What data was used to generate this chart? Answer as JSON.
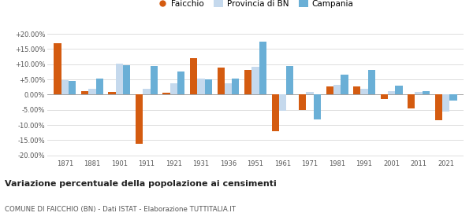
{
  "years": [
    1871,
    1881,
    1901,
    1911,
    1921,
    1931,
    1936,
    1951,
    1961,
    1971,
    1981,
    1991,
    2001,
    2011,
    2021
  ],
  "faicchio": [
    16.8,
    1.2,
    1.0,
    -16.2,
    0.5,
    12.0,
    8.8,
    8.2,
    -12.0,
    -5.0,
    2.8,
    2.8,
    -1.5,
    -4.5,
    -8.5
  ],
  "provincia_bn": [
    4.8,
    1.8,
    10.2,
    1.8,
    3.8,
    5.2,
    3.8,
    9.2,
    -5.3,
    1.0,
    3.2,
    2.0,
    1.2,
    0.8,
    -5.5
  ],
  "campania": [
    4.5,
    5.2,
    9.8,
    9.4,
    7.5,
    5.0,
    5.2,
    17.5,
    9.5,
    -8.2,
    6.5,
    8.0,
    3.0,
    1.2,
    -2.0
  ],
  "faicchio_color": "#d45b10",
  "provincia_color": "#c5d9ed",
  "campania_color": "#6aafd6",
  "bg_color": "#ffffff",
  "title": "Variazione percentuale della popolazione ai censimenti",
  "subtitle": "COMUNE DI FAICCHIO (BN) - Dati ISTAT - Elaborazione TUTTITALIA.IT",
  "legend_labels": [
    "Faicchio",
    "Provincia di BN",
    "Campania"
  ],
  "ylim": [
    -21,
    21
  ],
  "yticks": [
    -20,
    -15,
    -10,
    -5,
    0,
    5,
    10,
    15,
    20
  ],
  "bar_width": 0.27
}
